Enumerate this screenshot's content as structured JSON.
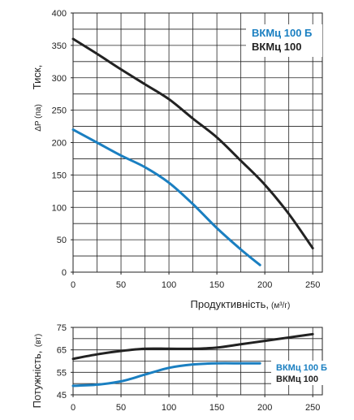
{
  "chart_data": [
    {
      "type": "line",
      "ylabel": "Тиск,",
      "ylabel_unit": "ΔP (па)",
      "xlabel": "Продуктивність,",
      "xlabel_unit": "(м³/г)",
      "xlim": [
        0,
        260
      ],
      "ylim": [
        0,
        400
      ],
      "x_ticks": [
        "0",
        "50",
        "100",
        "150",
        "200",
        "250"
      ],
      "y_ticks": [
        "0",
        "50",
        "100",
        "150",
        "200",
        "250",
        "300",
        "350",
        "400"
      ],
      "grid": true,
      "legend_position": "top-right",
      "series": [
        {
          "name": "ВКМц 100 Б",
          "color": "#1a7fc1",
          "x": [
            0,
            25,
            50,
            75,
            100,
            125,
            150,
            175,
            195
          ],
          "y": [
            220,
            200,
            180,
            162,
            138,
            105,
            68,
            35,
            11
          ]
        },
        {
          "name": "ВКМц 100",
          "color": "#222222",
          "x": [
            0,
            25,
            50,
            75,
            100,
            125,
            150,
            175,
            200,
            225,
            250
          ],
          "y": [
            360,
            337,
            313,
            290,
            267,
            237,
            208,
            172,
            135,
            90,
            37
          ]
        }
      ]
    },
    {
      "type": "line",
      "ylabel": "Потужність,",
      "ylabel_unit": "(вт)",
      "xlim": [
        0,
        260
      ],
      "ylim": [
        45,
        75
      ],
      "x_ticks": [
        "0",
        "50",
        "100",
        "150",
        "200",
        "250"
      ],
      "y_ticks": [
        "45",
        "55",
        "65",
        "75"
      ],
      "grid": true,
      "legend_position": "right",
      "series": [
        {
          "name": "ВКМц 100 Б",
          "color": "#1a7fc1",
          "x": [
            0,
            25,
            50,
            75,
            100,
            125,
            150,
            175,
            195
          ],
          "y": [
            49,
            49.5,
            51,
            54,
            57,
            58.5,
            59,
            59,
            59
          ]
        },
        {
          "name": "ВКМц 100",
          "color": "#222222",
          "x": [
            0,
            25,
            50,
            75,
            100,
            125,
            150,
            175,
            200,
            225,
            250
          ],
          "y": [
            61,
            63,
            64.5,
            65.5,
            65.5,
            65.5,
            66,
            67.5,
            69,
            70.5,
            72
          ]
        }
      ]
    }
  ]
}
